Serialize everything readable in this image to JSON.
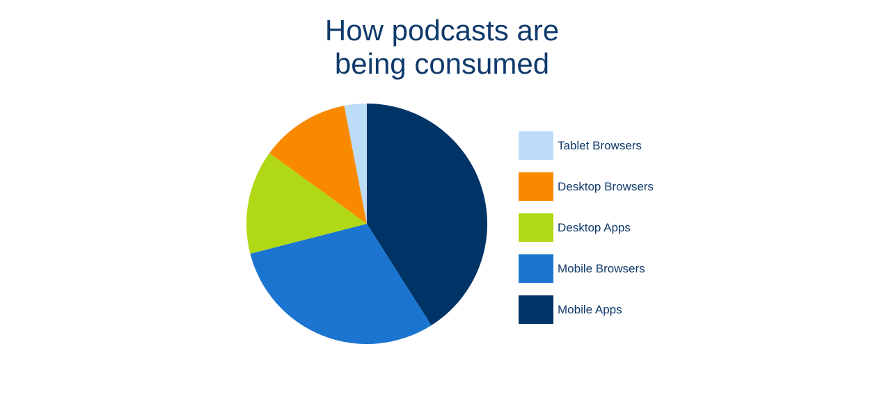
{
  "chart_data": {
    "type": "pie",
    "title": [
      "How podcasts are",
      "being consumed"
    ],
    "slices": [
      {
        "label": "Mobile Apps",
        "value": 41,
        "color": "#003366"
      },
      {
        "label": "Mobile Browsers",
        "value": 30,
        "color": "#1b75d0"
      },
      {
        "label": "Desktop Apps",
        "value": 14,
        "color": "#b0d814"
      },
      {
        "label": "Desktop Browsers",
        "value": 12,
        "color": "#f98a00"
      },
      {
        "label": "Tablet Browsers",
        "value": 3,
        "color": "#bcdcf8"
      }
    ],
    "legend": [
      {
        "label": "Tablet Browsers",
        "color": "#bcdcf8"
      },
      {
        "label": "Desktop Browsers",
        "color": "#f98a00"
      },
      {
        "label": "Desktop Apps",
        "color": "#b0d814"
      },
      {
        "label": "Mobile Browsers",
        "color": "#1b75d0"
      },
      {
        "label": "Mobile Apps",
        "color": "#003366"
      }
    ],
    "legend_position": "right"
  }
}
